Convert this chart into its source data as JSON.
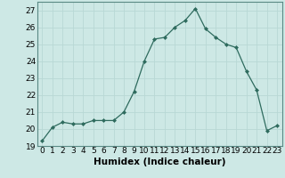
{
  "x": [
    0,
    1,
    2,
    3,
    4,
    5,
    6,
    7,
    8,
    9,
    10,
    11,
    12,
    13,
    14,
    15,
    16,
    17,
    18,
    19,
    20,
    21,
    22,
    23
  ],
  "y": [
    19.3,
    20.1,
    20.4,
    20.3,
    20.3,
    20.5,
    20.5,
    20.5,
    21.0,
    22.2,
    24.0,
    25.3,
    25.4,
    26.0,
    26.4,
    27.1,
    25.9,
    25.4,
    25.0,
    24.8,
    23.4,
    22.3,
    19.9,
    20.2
  ],
  "line_color": "#2e6b5e",
  "marker": "D",
  "marker_size": 2.0,
  "bg_color": "#cde8e5",
  "grid_color": "#b8d8d5",
  "xlabel": "Humidex (Indice chaleur)",
  "xlim": [
    -0.5,
    23.5
  ],
  "ylim": [
    19,
    27.5
  ],
  "yticks": [
    19,
    20,
    21,
    22,
    23,
    24,
    25,
    26,
    27
  ],
  "xticks": [
    0,
    1,
    2,
    3,
    4,
    5,
    6,
    7,
    8,
    9,
    10,
    11,
    12,
    13,
    14,
    15,
    16,
    17,
    18,
    19,
    20,
    21,
    22,
    23
  ],
  "tick_fontsize": 6.5,
  "xlabel_fontsize": 7.5
}
